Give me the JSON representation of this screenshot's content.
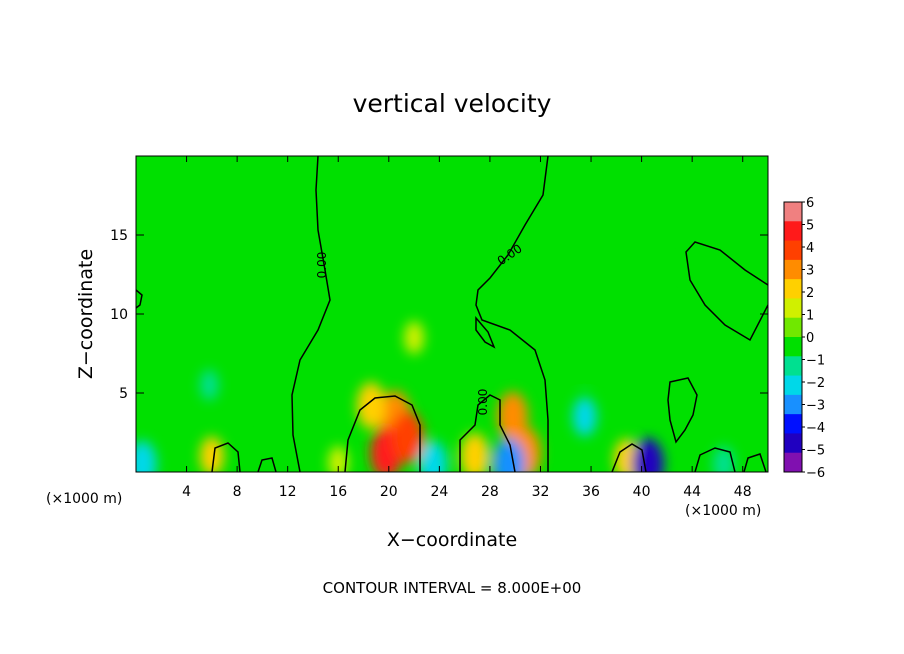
{
  "chart_data": {
    "type": "heatmap",
    "title": "vertical velocity",
    "xlabel": "X−coordinate",
    "ylabel": "Z−coordinate",
    "x_unit_left": "(×1000 m)",
    "x_unit_right": "(×1000 m)",
    "xlim": [
      0,
      50
    ],
    "ylim": [
      0,
      20
    ],
    "x_ticks": [
      "4",
      "8",
      "12",
      "16",
      "20",
      "24",
      "28",
      "32",
      "36",
      "40",
      "44",
      "48"
    ],
    "y_ticks": [
      "5",
      "10",
      "15"
    ],
    "colorbar": {
      "labels": [
        "6",
        "5",
        "4",
        "3",
        "2",
        "1",
        "0",
        "−1",
        "−2",
        "−3",
        "−4",
        "−5",
        "−6"
      ],
      "range": [
        -6,
        6
      ],
      "colors": [
        "#f08080",
        "#ff1a1a",
        "#ff4000",
        "#ff8c00",
        "#ffd000",
        "#d0f000",
        "#70e800",
        "#00e000",
        "#00e090",
        "#00d8e8",
        "#1890ff",
        "#0010ff",
        "#2000c0",
        "#8010b0"
      ]
    },
    "contour_label": "0.00",
    "contour_interval_text": "CONTOUR INTERVAL = 8.000E+00",
    "features": [
      {
        "x": 20.5,
        "z": 3.5,
        "w": 3.0
      },
      {
        "x": 19.8,
        "z": 1.2,
        "w": 4.5
      },
      {
        "x": 18.6,
        "z": 4.2,
        "w": 2.5
      },
      {
        "x": 21.5,
        "z": 2.2,
        "w": 3.5
      },
      {
        "x": 22.0,
        "z": 8.5,
        "w": 1.2
      },
      {
        "x": 29.8,
        "z": 3.5,
        "w": 2.8
      },
      {
        "x": 30.8,
        "z": 1.2,
        "w": 3.0
      },
      {
        "x": 26.8,
        "z": 1.0,
        "w": 2.5
      },
      {
        "x": 6.0,
        "z": 1.0,
        "w": 1.8
      },
      {
        "x": 38.8,
        "z": 0.8,
        "w": 2.0
      },
      {
        "x": 16.0,
        "z": 0.6,
        "w": 1.2
      },
      {
        "x": 5.8,
        "z": 5.5,
        "w": -1.0
      },
      {
        "x": 35.5,
        "z": 3.5,
        "w": -1.8
      },
      {
        "x": 35.5,
        "z": 6.5,
        "w": -0.8
      },
      {
        "x": 40.5,
        "z": 0.5,
        "w": -5.0
      },
      {
        "x": 0.5,
        "z": 0.5,
        "w": -2.5
      },
      {
        "x": 23.5,
        "z": 0.5,
        "w": -2.5
      },
      {
        "x": 29.5,
        "z": 0.5,
        "w": -3.0
      },
      {
        "x": 10.5,
        "z": 1.5,
        "w": -0.6
      },
      {
        "x": 44.0,
        "z": 13.0,
        "w": -0.4
      },
      {
        "x": 46.5,
        "z": 0.5,
        "w": -1.5
      }
    ]
  }
}
